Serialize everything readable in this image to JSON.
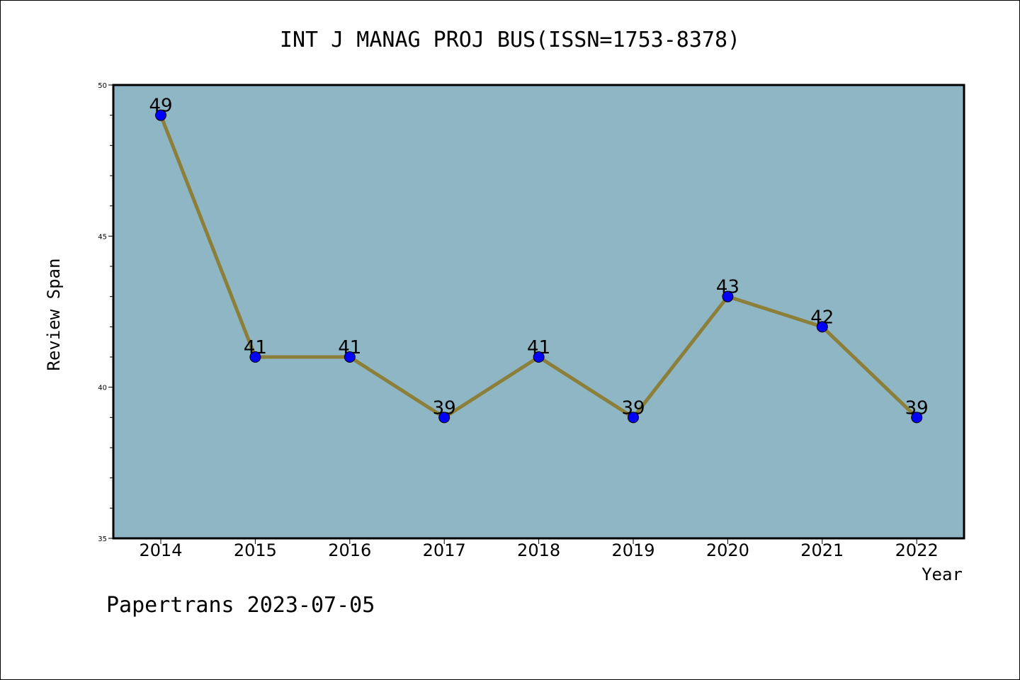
{
  "chart_data": {
    "type": "line",
    "title": "INT J MANAG PROJ BUS(ISSN=1753-8378)",
    "xlabel": "Year",
    "ylabel": "Review Span",
    "categories": [
      "2014",
      "2015",
      "2016",
      "2017",
      "2018",
      "2019",
      "2020",
      "2021",
      "2022"
    ],
    "series": [
      {
        "values": [
          49,
          41,
          41,
          39,
          41,
          39,
          43,
          42,
          39
        ]
      }
    ],
    "data_labels": [
      "49",
      "41",
      "41",
      "39",
      "41",
      "39",
      "43",
      "42",
      "39"
    ],
    "ylim": [
      35,
      50
    ],
    "yticks": [
      "35",
      "40",
      "45",
      "50"
    ],
    "grid": false,
    "colors": {
      "plot_background": "#8fb6c5",
      "line": "#8c7f3a",
      "marker": "#0000ff"
    }
  },
  "footer": "Papertrans 2023-07-05"
}
